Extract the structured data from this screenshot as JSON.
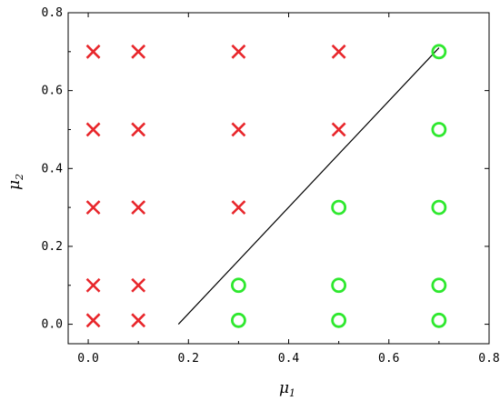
{
  "chart_data": {
    "type": "scatter",
    "xlabel": {
      "base": "μ",
      "sub": "1"
    },
    "ylabel": {
      "base": "μ",
      "sub": "2"
    },
    "xlim": [
      -0.04,
      0.8
    ],
    "ylim": [
      -0.05,
      0.8
    ],
    "xticks": [
      "0.0",
      "0.2",
      "0.4",
      "0.6",
      "0.8"
    ],
    "yticks": [
      "0.0",
      "0.2",
      "0.4",
      "0.6",
      "0.8"
    ],
    "xtick_values": [
      0.0,
      0.2,
      0.4,
      0.6,
      0.8
    ],
    "ytick_values": [
      0.0,
      0.2,
      0.4,
      0.6,
      0.8
    ],
    "grid": false,
    "legend": "none",
    "series": [
      {
        "marker": "x",
        "color": "#e8262b",
        "points": [
          [
            0.01,
            0.7
          ],
          [
            0.1,
            0.7
          ],
          [
            0.3,
            0.7
          ],
          [
            0.5,
            0.7
          ],
          [
            0.01,
            0.5
          ],
          [
            0.1,
            0.5
          ],
          [
            0.3,
            0.5
          ],
          [
            0.5,
            0.5
          ],
          [
            0.01,
            0.3
          ],
          [
            0.1,
            0.3
          ],
          [
            0.3,
            0.3
          ],
          [
            0.01,
            0.1
          ],
          [
            0.1,
            0.1
          ],
          [
            0.01,
            0.01
          ],
          [
            0.1,
            0.01
          ]
        ]
      },
      {
        "marker": "circle",
        "color": "#2ee82e",
        "points": [
          [
            0.7,
            0.7
          ],
          [
            0.7,
            0.5
          ],
          [
            0.5,
            0.3
          ],
          [
            0.7,
            0.3
          ],
          [
            0.3,
            0.1
          ],
          [
            0.5,
            0.1
          ],
          [
            0.7,
            0.1
          ],
          [
            0.3,
            0.01
          ],
          [
            0.5,
            0.01
          ],
          [
            0.7,
            0.01
          ]
        ]
      }
    ],
    "lines": [
      {
        "color": "#000000",
        "points": [
          [
            0.18,
            0.0
          ],
          [
            0.7,
            0.71
          ]
        ]
      }
    ]
  }
}
